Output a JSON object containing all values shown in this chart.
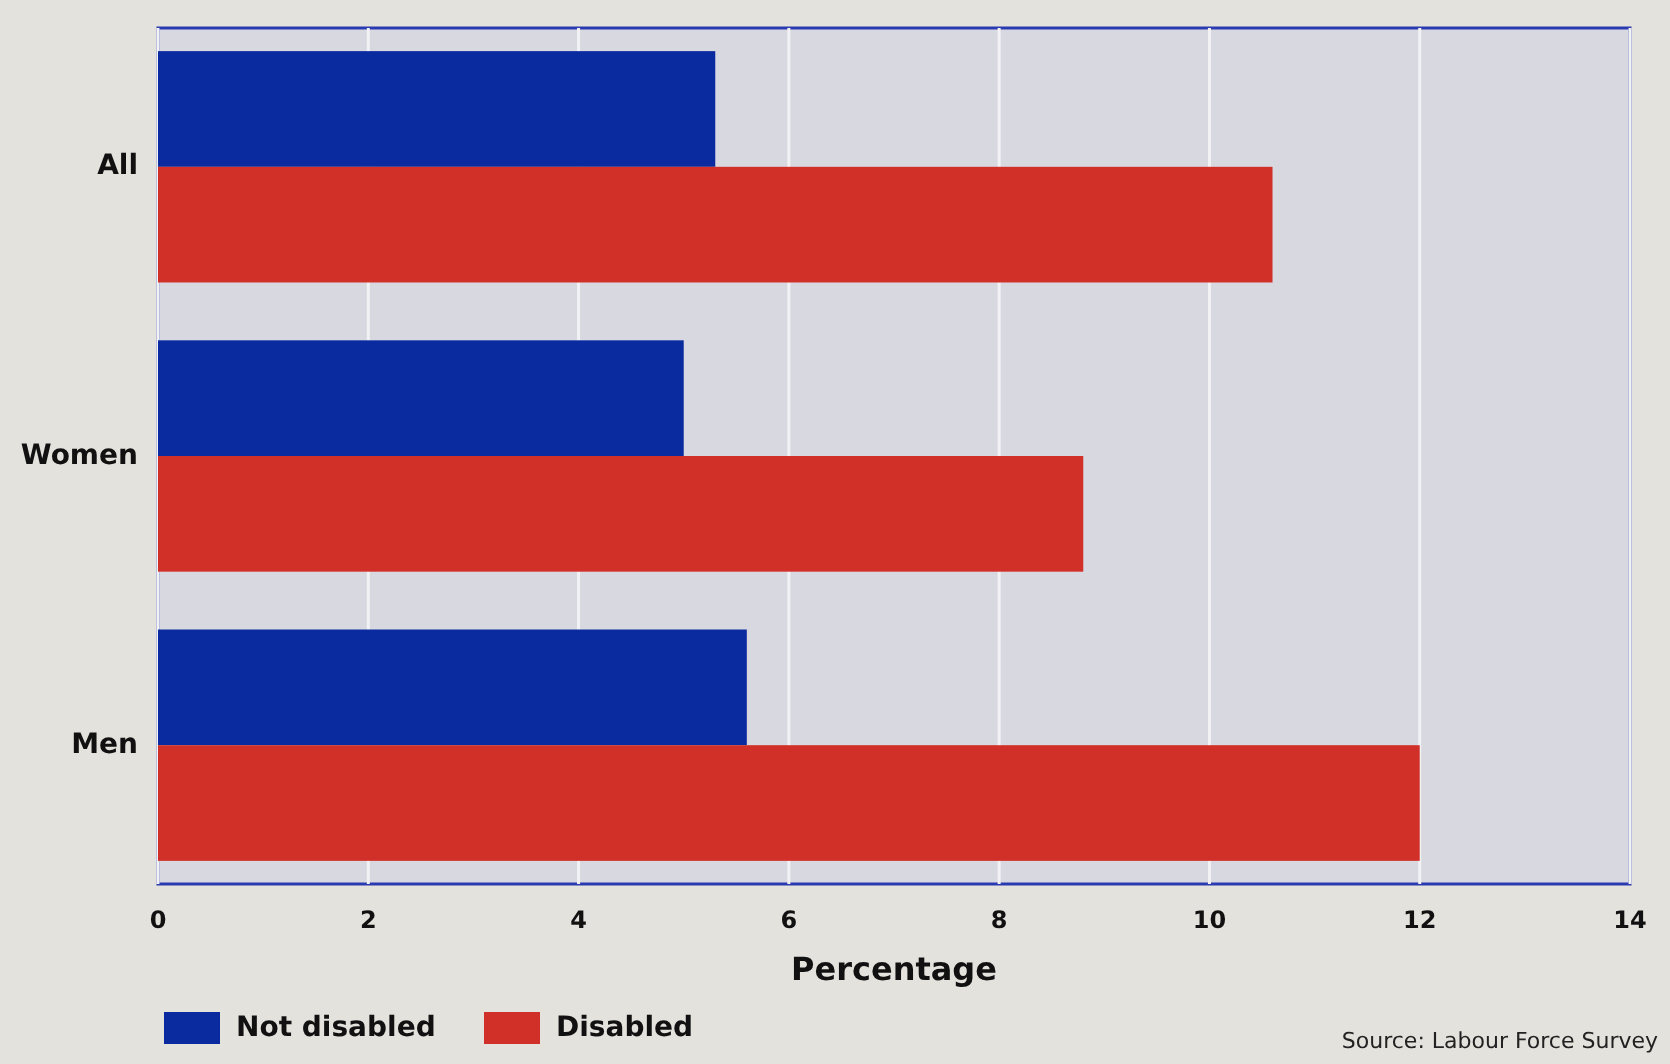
{
  "chart_data": {
    "type": "bar",
    "orientation": "horizontal",
    "categories": [
      "All",
      "Women",
      "Men"
    ],
    "series": [
      {
        "name": "Not disabled",
        "color": "#0a2aa0",
        "values": [
          5.3,
          5.0,
          5.6
        ]
      },
      {
        "name": "Disabled",
        "color": "#d03028",
        "values": [
          10.6,
          8.8,
          12.0
        ]
      }
    ],
    "xlabel": "Percentage",
    "xlim": [
      0,
      14
    ],
    "xticks": [
      0,
      2,
      4,
      6,
      8,
      10,
      12,
      14
    ],
    "grid": "x",
    "legend": "bottom left",
    "annotations": [
      "Source: Labour Force Survey"
    ]
  }
}
